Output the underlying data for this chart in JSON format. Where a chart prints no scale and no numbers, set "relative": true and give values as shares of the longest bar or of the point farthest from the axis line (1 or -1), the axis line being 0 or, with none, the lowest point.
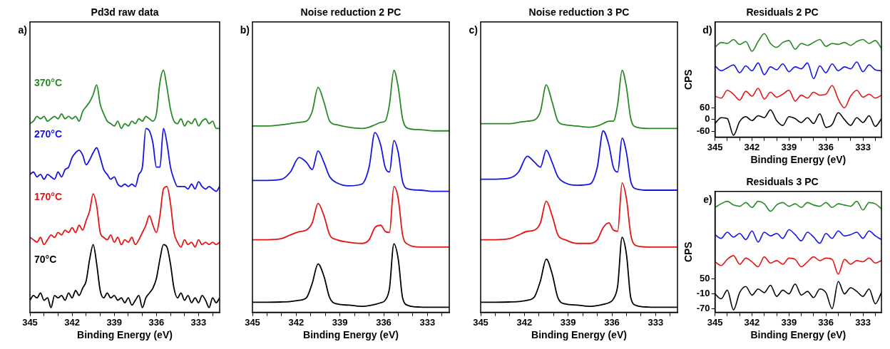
{
  "chart_data": [
    {
      "type": "line",
      "title": "Pd3d raw data",
      "xlabel": "Binding Energy (eV)",
      "annotations": [
        "a)"
      ],
      "relative": true,
      "marker": "none",
      "legend": false,
      "xlim": [
        345,
        331.5
      ],
      "xticks": [
        345,
        {
          "value": 344,
          "label": null
        },
        {
          "value": 343,
          "label": null
        },
        342,
        {
          "value": 341,
          "label": null
        },
        {
          "value": 340,
          "label": null
        },
        339,
        {
          "value": 338,
          "label": null
        },
        {
          "value": 337,
          "label": null
        },
        336,
        {
          "value": 335,
          "label": null
        },
        {
          "value": 334,
          "label": null
        },
        333,
        {
          "value": 332,
          "label": null
        }
      ],
      "x": [
        345,
        344.75,
        344.5,
        344.25,
        344,
        343.75,
        343.5,
        343.25,
        343,
        342.75,
        342.5,
        342.25,
        342,
        341.75,
        341.5,
        341.25,
        341,
        340.75,
        340.5,
        340.25,
        340,
        339.75,
        339.5,
        339.25,
        339,
        338.75,
        338.5,
        338.25,
        338,
        337.75,
        337.5,
        337.25,
        337,
        336.75,
        336.5,
        336.25,
        336,
        335.75,
        335.5,
        335.25,
        335,
        334.75,
        334.5,
        334.25,
        334,
        333.75,
        333.5,
        333.25,
        333,
        332.75,
        332.5,
        332.25,
        332,
        331.75,
        331.5
      ],
      "series": [
        {
          "name": "370°C",
          "color": "#268a26",
          "values": [
            0.78,
            0.79,
            0.81,
            0.8,
            0.81,
            0.79,
            0.8,
            0.81,
            0.8,
            0.82,
            0.8,
            0.81,
            0.8,
            0.81,
            0.79,
            0.83,
            0.85,
            0.87,
            0.9,
            0.94,
            0.86,
            0.82,
            0.79,
            0.78,
            0.77,
            0.79,
            0.76,
            0.78,
            0.77,
            0.79,
            0.78,
            0.8,
            0.79,
            0.81,
            0.8,
            0.79,
            0.82,
            0.95,
            1.0,
            0.93,
            0.84,
            0.79,
            0.78,
            0.8,
            0.77,
            0.79,
            0.78,
            0.8,
            0.77,
            0.79,
            0.8,
            0.78,
            0.79,
            0.76,
            0.76
          ]
        },
        {
          "name": "270°C",
          "color": "#1414e6",
          "values": [
            0.57,
            0.58,
            0.56,
            0.57,
            0.55,
            0.57,
            0.56,
            0.55,
            0.58,
            0.56,
            0.59,
            0.6,
            0.64,
            0.66,
            0.67,
            0.65,
            0.61,
            0.63,
            0.66,
            0.68,
            0.64,
            0.59,
            0.57,
            0.55,
            0.56,
            0.53,
            0.52,
            0.53,
            0.52,
            0.53,
            0.52,
            0.57,
            0.6,
            0.76,
            0.75,
            0.7,
            0.6,
            0.6,
            0.76,
            0.7,
            0.6,
            0.55,
            0.52,
            0.52,
            0.52,
            0.51,
            0.53,
            0.51,
            0.54,
            0.52,
            0.51,
            0.52,
            0.51,
            0.5,
            0.52
          ]
        },
        {
          "name": "170°C",
          "color": "#e61414",
          "values": [
            0.31,
            0.3,
            0.29,
            0.31,
            0.28,
            0.3,
            0.32,
            0.31,
            0.33,
            0.32,
            0.34,
            0.33,
            0.35,
            0.33,
            0.36,
            0.34,
            0.38,
            0.42,
            0.49,
            0.44,
            0.33,
            0.31,
            0.3,
            0.32,
            0.29,
            0.31,
            0.28,
            0.3,
            0.29,
            0.31,
            0.28,
            0.3,
            0.33,
            0.36,
            0.4,
            0.36,
            0.33,
            0.4,
            0.51,
            0.52,
            0.45,
            0.33,
            0.29,
            0.27,
            0.3,
            0.28,
            0.29,
            0.27,
            0.3,
            0.28,
            0.29,
            0.28,
            0.29,
            0.28,
            0.29
          ]
        },
        {
          "name": "70°C",
          "color": "#000000",
          "values": [
            0.05,
            0.07,
            0.06,
            0.08,
            0.05,
            0.06,
            0.02,
            0.07,
            0.06,
            0.07,
            0.05,
            0.08,
            0.06,
            0.09,
            0.07,
            0.1,
            0.13,
            0.22,
            0.28,
            0.2,
            0.09,
            0.06,
            0.08,
            0.06,
            0.07,
            0.05,
            0.06,
            0.04,
            0.06,
            0.03,
            0.05,
            0.07,
            0.02,
            0.06,
            0.08,
            0.1,
            0.14,
            0.22,
            0.28,
            0.27,
            0.2,
            0.1,
            0.06,
            0.08,
            0.05,
            0.07,
            0.04,
            0.06,
            0.04,
            0.07,
            0.05,
            0.02,
            0.06,
            0.04,
            0.06
          ]
        }
      ]
    },
    {
      "type": "line",
      "title": "Noise reduction 2 PC",
      "xlabel": "Binding Energy (eV)",
      "annotations": [
        "b)"
      ],
      "relative": true,
      "marker": "none",
      "legend": false,
      "xlim": [
        345,
        331.5
      ],
      "xticks": [
        345,
        {
          "value": 344,
          "label": null
        },
        {
          "value": 343,
          "label": null
        },
        342,
        {
          "value": 341,
          "label": null
        },
        {
          "value": 340,
          "label": null
        },
        339,
        {
          "value": 338,
          "label": null
        },
        {
          "value": 337,
          "label": null
        },
        336,
        {
          "value": 335,
          "label": null
        },
        {
          "value": 334,
          "label": null
        },
        333,
        {
          "value": 332,
          "label": null
        }
      ],
      "x": [
        345,
        344,
        343,
        342.4,
        341.8,
        341.3,
        340.9,
        340.5,
        340.1,
        339.7,
        339.2,
        338.4,
        337.5,
        337,
        336.6,
        336.2,
        335.9,
        335.6,
        335.3,
        335,
        334.7,
        334.3,
        333.5,
        332.5,
        331.5
      ],
      "series": [
        {
          "color": "#268a26",
          "values": [
            0.77,
            0.77,
            0.775,
            0.78,
            0.785,
            0.79,
            0.83,
            0.93,
            0.87,
            0.79,
            0.775,
            0.765,
            0.76,
            0.765,
            0.775,
            0.785,
            0.79,
            0.86,
            1.0,
            0.93,
            0.8,
            0.76,
            0.755,
            0.75,
            0.75
          ]
        },
        {
          "color": "#1414e6",
          "values": [
            0.545,
            0.545,
            0.55,
            0.58,
            0.64,
            0.62,
            0.59,
            0.667,
            0.62,
            0.56,
            0.535,
            0.523,
            0.53,
            0.6,
            0.743,
            0.69,
            0.6,
            0.58,
            0.71,
            0.66,
            0.54,
            0.51,
            0.505,
            0.5,
            0.5
          ]
        },
        {
          "color": "#e61414",
          "values": [
            0.3,
            0.3,
            0.305,
            0.32,
            0.333,
            0.34,
            0.37,
            0.45,
            0.4,
            0.32,
            0.3,
            0.29,
            0.285,
            0.3,
            0.35,
            0.36,
            0.335,
            0.33,
            0.52,
            0.47,
            0.32,
            0.28,
            0.27,
            0.27,
            0.27
          ]
        },
        {
          "color": "#000000",
          "values": [
            0.042,
            0.042,
            0.043,
            0.045,
            0.05,
            0.06,
            0.12,
            0.2,
            0.15,
            0.06,
            0.035,
            0.03,
            0.025,
            0.028,
            0.033,
            0.04,
            0.05,
            0.1,
            0.283,
            0.22,
            0.06,
            0.028,
            0.022,
            0.021,
            0.021
          ]
        }
      ]
    },
    {
      "type": "line",
      "title": "Noise reduction 3 PC",
      "xlabel": "Binding Energy (eV)",
      "annotations": [
        "c)"
      ],
      "relative": true,
      "marker": "none",
      "legend": false,
      "xlim": [
        345,
        331.5
      ],
      "xticks": [
        345,
        {
          "value": 344,
          "label": null
        },
        {
          "value": 343,
          "label": null
        },
        342,
        {
          "value": 341,
          "label": null
        },
        {
          "value": 340,
          "label": null
        },
        339,
        {
          "value": 338,
          "label": null
        },
        {
          "value": 337,
          "label": null
        },
        336,
        {
          "value": 335,
          "label": null
        },
        {
          "value": 334,
          "label": null
        },
        333,
        {
          "value": 332,
          "label": null
        }
      ],
      "x": [
        345,
        344,
        343,
        342.4,
        341.8,
        341.3,
        340.9,
        340.5,
        340.1,
        339.7,
        339.2,
        338.4,
        337.5,
        337,
        336.6,
        336.2,
        335.9,
        335.6,
        335.3,
        335,
        334.7,
        334.3,
        333.5,
        332.5,
        331.5
      ],
      "series": [
        {
          "color": "#268a26",
          "values": [
            0.78,
            0.78,
            0.78,
            0.785,
            0.79,
            0.795,
            0.83,
            0.94,
            0.87,
            0.79,
            0.775,
            0.77,
            0.765,
            0.77,
            0.78,
            0.79,
            0.79,
            0.86,
            1.0,
            0.93,
            0.8,
            0.765,
            0.76,
            0.76,
            0.76
          ]
        },
        {
          "color": "#1414e6",
          "values": [
            0.55,
            0.55,
            0.555,
            0.58,
            0.645,
            0.62,
            0.6,
            0.67,
            0.62,
            0.56,
            0.535,
            0.525,
            0.53,
            0.6,
            0.75,
            0.69,
            0.6,
            0.58,
            0.72,
            0.66,
            0.54,
            0.51,
            0.505,
            0.505,
            0.505
          ]
        },
        {
          "color": "#e61414",
          "values": [
            0.3,
            0.3,
            0.305,
            0.32,
            0.335,
            0.34,
            0.37,
            0.46,
            0.4,
            0.32,
            0.3,
            0.285,
            0.285,
            0.3,
            0.35,
            0.37,
            0.34,
            0.335,
            0.535,
            0.47,
            0.32,
            0.275,
            0.27,
            0.27,
            0.27
          ]
        },
        {
          "color": "#000000",
          "values": [
            0.042,
            0.042,
            0.043,
            0.045,
            0.05,
            0.065,
            0.13,
            0.22,
            0.16,
            0.06,
            0.035,
            0.03,
            0.025,
            0.028,
            0.033,
            0.04,
            0.055,
            0.11,
            0.31,
            0.24,
            0.06,
            0.028,
            0.022,
            0.021,
            0.021
          ]
        }
      ]
    },
    {
      "type": "line",
      "title": "Residuals 2 PC",
      "xlabel": "Binding Energy (eV)",
      "ylabel": "CPS",
      "annotations": [
        "d)"
      ],
      "marker": "none",
      "legend": false,
      "xlim": [
        345,
        331.5
      ],
      "xticks": [
        345,
        {
          "value": 344,
          "label": null
        },
        {
          "value": 343,
          "label": null
        },
        342,
        {
          "value": 341,
          "label": null
        },
        {
          "value": 340,
          "label": null
        },
        339,
        {
          "value": 338,
          "label": null
        },
        {
          "value": 337,
          "label": null
        },
        336,
        {
          "value": 335,
          "label": null
        },
        {
          "value": 334,
          "label": null
        },
        333,
        {
          "value": 332,
          "label": null
        }
      ],
      "ylim": [
        -90,
        500
      ],
      "yticks": [
        -60,
        0,
        60
      ],
      "x": [
        345,
        344.5,
        344,
        343.5,
        343,
        342.5,
        342,
        341.5,
        341,
        340.5,
        340,
        339.5,
        339,
        338.5,
        338,
        337.5,
        337,
        336.5,
        336,
        335.5,
        335,
        334.5,
        334,
        333.5,
        333,
        332.5,
        332,
        331.5
      ],
      "series": [
        {
          "color": "#268a26",
          "values": [
            370,
            395,
            390,
            410,
            385,
            400,
            350,
            400,
            440,
            390,
            370,
            395,
            405,
            360,
            390,
            380,
            395,
            410,
            375,
            390,
            385,
            395,
            380,
            400,
            410,
            390,
            405,
            365
          ]
        },
        {
          "color": "#1414e6",
          "values": [
            275,
            250,
            265,
            280,
            240,
            275,
            250,
            290,
            230,
            270,
            255,
            285,
            245,
            270,
            260,
            290,
            210,
            275,
            240,
            285,
            250,
            270,
            260,
            295,
            245,
            280,
            255,
            250
          ]
        },
        {
          "color": "#e61414",
          "values": [
            120,
            110,
            150,
            130,
            100,
            145,
            120,
            160,
            105,
            140,
            115,
            130,
            150,
            95,
            125,
            110,
            140,
            125,
            130,
            175,
            105,
            60,
            120,
            150,
            115,
            130,
            110,
            125
          ]
        },
        {
          "color": "#000000",
          "values": [
            -20,
            10,
            5,
            -80,
            -10,
            15,
            -5,
            20,
            10,
            50,
            -5,
            -30,
            15,
            5,
            -15,
            10,
            -20,
            30,
            -40,
            -25,
            35,
            0,
            -30,
            10,
            -15,
            20,
            -35,
            5
          ]
        }
      ]
    },
    {
      "type": "line",
      "title": "Residuals 3 PC",
      "xlabel": "Binding Energy (eV)",
      "ylabel": "CPS",
      "annotations": [
        "e)"
      ],
      "marker": "none",
      "legend": false,
      "xlim": [
        345,
        331.5
      ],
      "xticks": [
        345,
        {
          "value": 344,
          "label": null
        },
        {
          "value": 343,
          "label": null
        },
        342,
        {
          "value": 341,
          "label": null
        },
        {
          "value": 340,
          "label": null
        },
        339,
        {
          "value": 338,
          "label": null
        },
        {
          "value": 337,
          "label": null
        },
        336,
        {
          "value": 335,
          "label": null
        },
        {
          "value": 334,
          "label": null
        },
        333,
        {
          "value": 332,
          "label": null
        }
      ],
      "ylim": [
        -85,
        405
      ],
      "yticks": [
        -70,
        -10,
        50
      ],
      "x": [
        345,
        344.5,
        344,
        343.5,
        343,
        342.5,
        342,
        341.5,
        341,
        340.5,
        340,
        339.5,
        339,
        338.5,
        338,
        337.5,
        337,
        336.5,
        336,
        335.5,
        335,
        334.5,
        334,
        333.5,
        333,
        332.5,
        332,
        331.5
      ],
      "series": [
        {
          "color": "#268a26",
          "values": [
            340,
            355,
            365,
            350,
            345,
            360,
            340,
            365,
            355,
            325,
            350,
            360,
            345,
            355,
            340,
            360,
            350,
            345,
            360,
            340,
            355,
            350,
            345,
            365,
            330,
            360,
            355,
            335
          ]
        },
        {
          "color": "#1414e6",
          "values": [
            230,
            215,
            240,
            220,
            235,
            210,
            245,
            200,
            240,
            225,
            235,
            215,
            250,
            230,
            205,
            240,
            220,
            195,
            235,
            215,
            245,
            225,
            230,
            240,
            215,
            245,
            225,
            210
          ]
        },
        {
          "color": "#e61414",
          "values": [
            120,
            105,
            130,
            145,
            110,
            135,
            120,
            100,
            140,
            115,
            125,
            110,
            135,
            130,
            100,
            120,
            140,
            125,
            135,
            130,
            70,
            130,
            110,
            125,
            120,
            135,
            115,
            125
          ]
        },
        {
          "color": "#000000",
          "values": [
            -10,
            -30,
            5,
            -75,
            -5,
            20,
            -15,
            10,
            -5,
            25,
            -20,
            5,
            -10,
            30,
            -15,
            0,
            -25,
            10,
            -5,
            -70,
            40,
            -10,
            15,
            0,
            -20,
            10,
            -50,
            -5
          ]
        }
      ]
    }
  ]
}
